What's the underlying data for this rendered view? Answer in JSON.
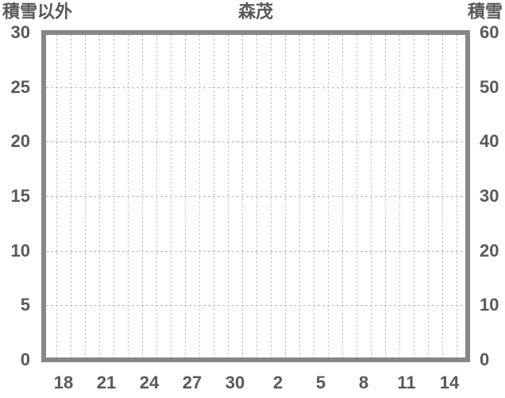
{
  "chart_data": {
    "type": "line",
    "title": "森茂",
    "series": [],
    "left_axis": {
      "label": "積雪以外",
      "min": 0,
      "max": 30,
      "tick_step": 5,
      "ticks": [
        "30",
        "25",
        "20",
        "15",
        "10",
        "5",
        "0"
      ]
    },
    "right_axis": {
      "label": "積雪",
      "min": 0,
      "max": 60,
      "tick_step": 10,
      "ticks": [
        "60",
        "50",
        "40",
        "30",
        "20",
        "10",
        "0"
      ]
    },
    "x_axis": {
      "tick_labels": [
        "18",
        "21",
        "24",
        "27",
        "30",
        "2",
        "5",
        "8",
        "11",
        "14"
      ],
      "gridline_count": 29,
      "label_every_n_slots": 3
    },
    "grid": true,
    "legend": "none",
    "colors": {
      "text": "#595959",
      "frame": "#878787",
      "gridline": "#b8b8b8",
      "background": "#ffffff"
    }
  }
}
